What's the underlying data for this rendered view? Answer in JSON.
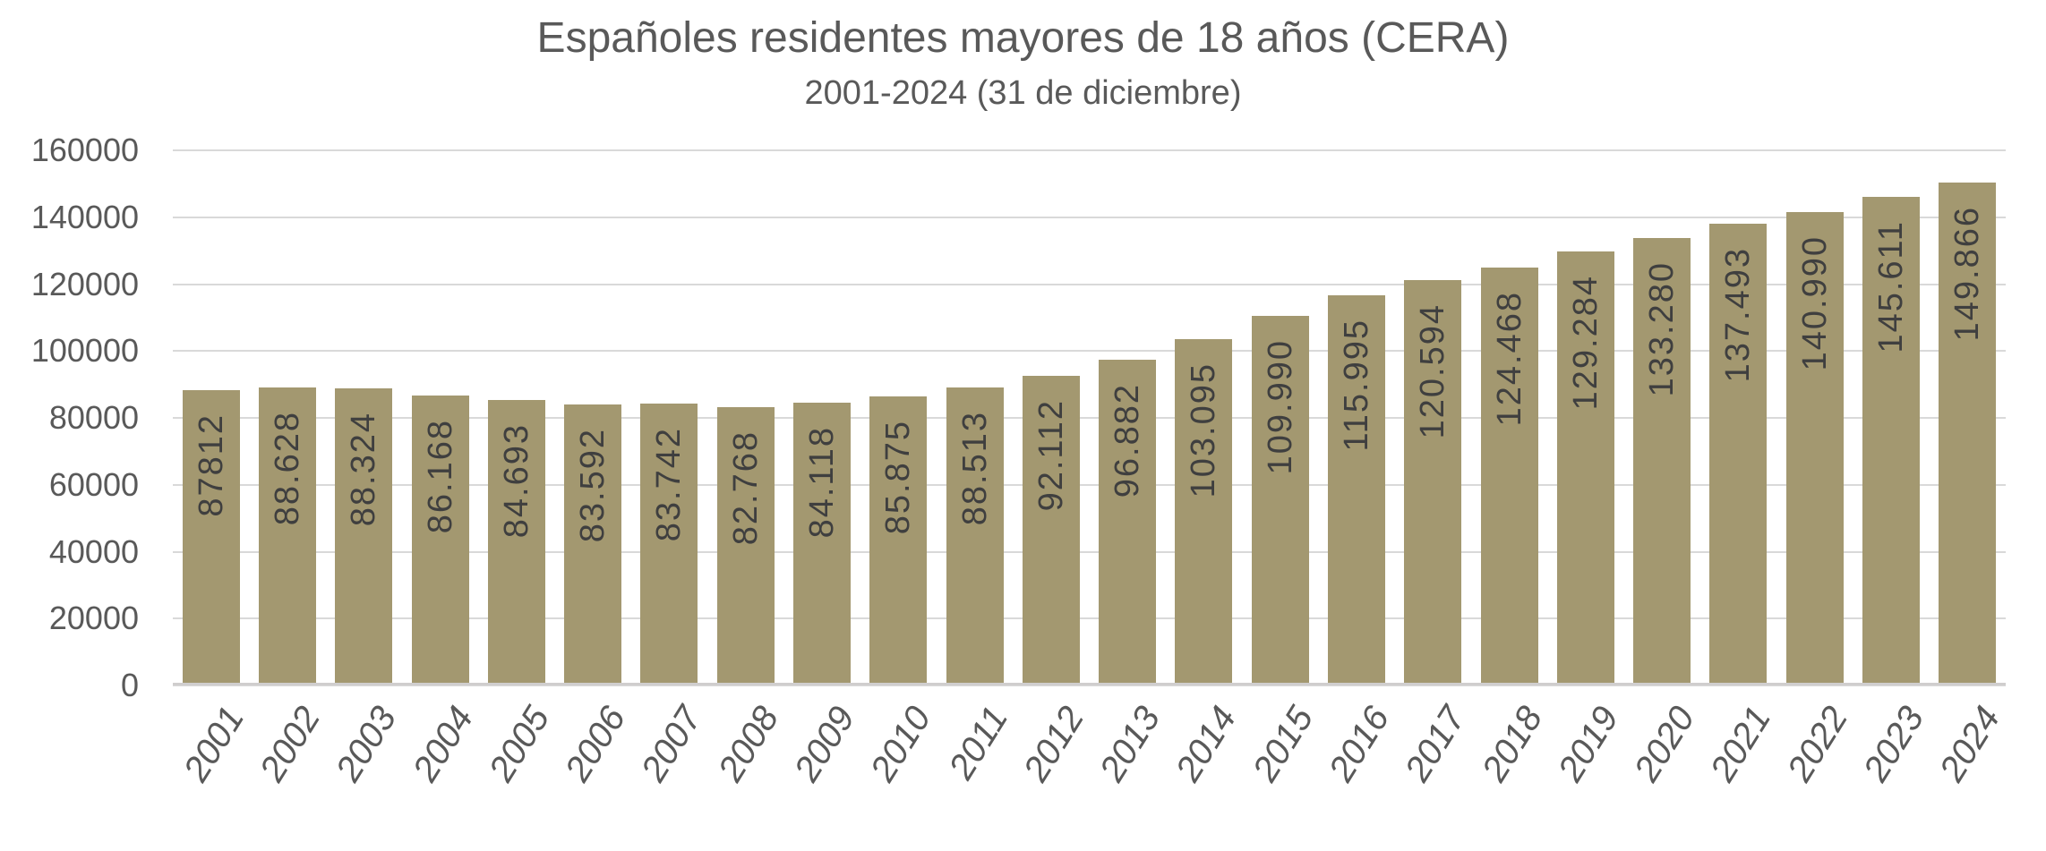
{
  "chart_data": {
    "type": "bar",
    "title": "Españoles residentes mayores de 18 años (CERA)",
    "subtitle": "2001-2024 (31 de diciembre)",
    "categories": [
      "2001",
      "2002",
      "2003",
      "2004",
      "2005",
      "2006",
      "2007",
      "2008",
      "2009",
      "2010",
      "2011",
      "2012",
      "2013",
      "2014",
      "2015",
      "2016",
      "2017",
      "2018",
      "2019",
      "2020",
      "2021",
      "2022",
      "2023",
      "2024"
    ],
    "values": [
      87812,
      88628,
      88324,
      86168,
      84693,
      83592,
      83742,
      82768,
      84118,
      85875,
      88513,
      92112,
      96882,
      103095,
      109990,
      115995,
      120594,
      124468,
      129284,
      133280,
      137493,
      140990,
      145611,
      149866
    ],
    "value_labels": [
      "87812",
      "88.628",
      "88.324",
      "86.168",
      "84.693",
      "83.592",
      "83.742",
      "82.768",
      "84.118",
      "85.875",
      "88.513",
      "92.112",
      "96.882",
      "103.095",
      "109.990",
      "115.995",
      "120.594",
      "124.468",
      "129.284",
      "133.280",
      "137.493",
      "140.990",
      "145.611",
      "149.866"
    ],
    "xlabel": "",
    "ylabel": "",
    "ylim": [
      0,
      160000
    ],
    "ytick_interval": 20000,
    "ytick_labels": [
      "0",
      "20000",
      "40000",
      "60000",
      "80000",
      "100000",
      "120000",
      "140000",
      "160000"
    ],
    "grid": true,
    "legend_position": "none",
    "colors": {
      "bar": "#A39870",
      "value_label": "#3F3F3F",
      "axis_text": "#595959",
      "title_text": "#595959",
      "gridline": "#D9D9D9",
      "axis_line": "#D0CECE",
      "background": "#FFFFFF"
    }
  }
}
